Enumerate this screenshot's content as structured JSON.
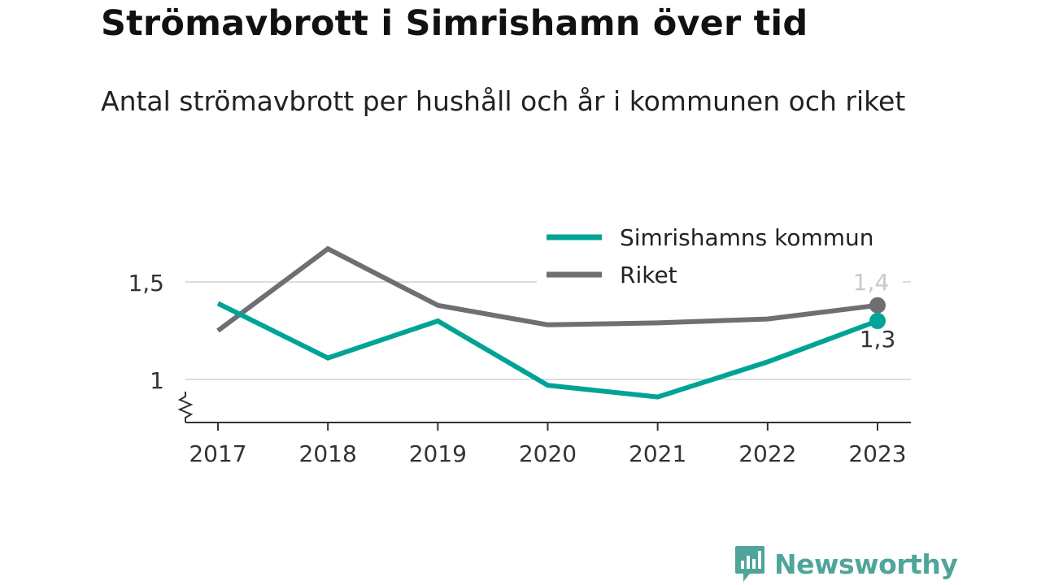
{
  "header": {
    "title": "Strömavbrott i Simrishamn över tid",
    "subtitle": "Antal strömavbrott per hushåll och år i kommunen och riket"
  },
  "brand": {
    "name": "Newsworthy",
    "color": "#4fa59a"
  },
  "chart_data": {
    "type": "line",
    "title": "Strömavbrott i Simrishamn över tid",
    "subtitle": "Antal strömavbrott per hushåll och år i kommunen och riket",
    "x": [
      2017,
      2018,
      2019,
      2020,
      2021,
      2022,
      2023
    ],
    "x_tick_labels": [
      "2017",
      "2018",
      "2019",
      "2020",
      "2021",
      "2022",
      "2023"
    ],
    "ylim": [
      0.78,
      1.5
    ],
    "y_ticks": [
      1,
      1.5
    ],
    "y_tick_labels": [
      "1",
      "1,5"
    ],
    "axis_break": true,
    "grid": true,
    "legend_position": "top-right",
    "series": [
      {
        "name": "Simrishamns kommun",
        "color": "#00a396",
        "values": [
          1.39,
          1.11,
          1.3,
          0.97,
          0.91,
          1.09,
          1.3
        ],
        "end_label": "1,3"
      },
      {
        "name": "Riket",
        "color": "#6f6e73",
        "values": [
          1.25,
          1.67,
          1.38,
          1.28,
          1.29,
          1.31,
          1.38
        ],
        "end_label": "1,4"
      }
    ]
  }
}
